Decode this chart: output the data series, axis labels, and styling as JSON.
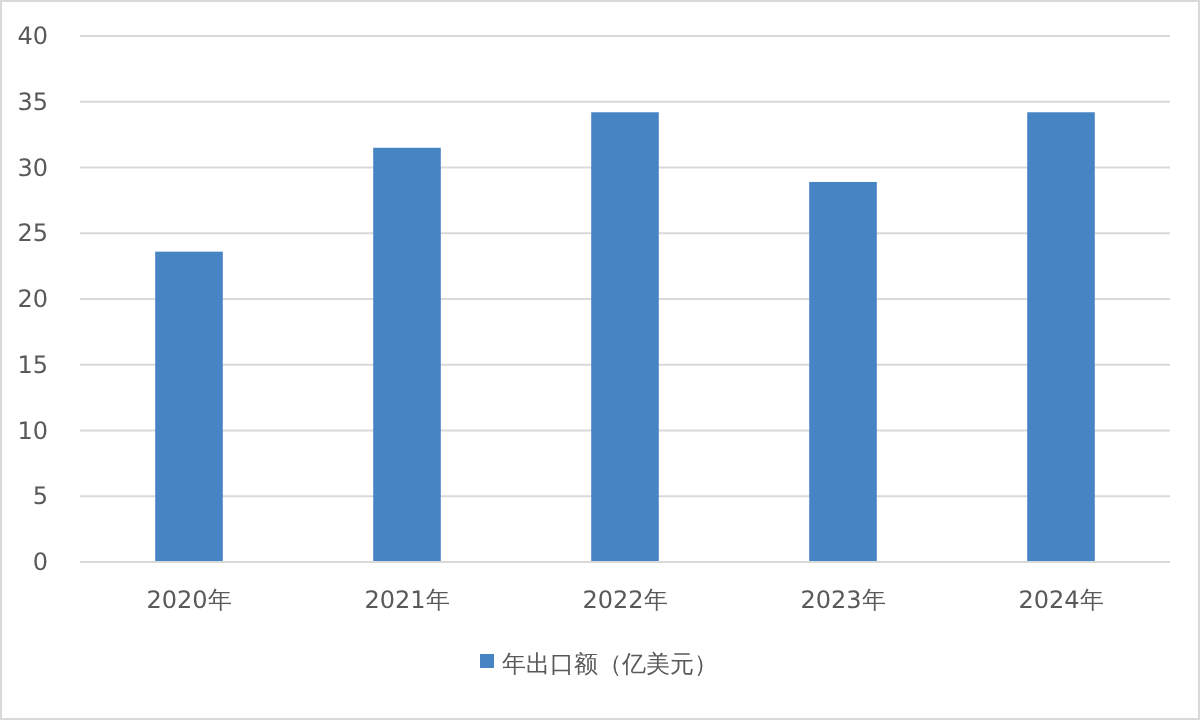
{
  "chart_data": {
    "type": "bar",
    "categories": [
      "2020年",
      "2021年",
      "2022年",
      "2023年",
      "2024年"
    ],
    "series": [
      {
        "name": "年出口额（亿美元）",
        "color": "#4684c4",
        "values": [
          23.6,
          31.5,
          34.2,
          28.9,
          34.2
        ]
      }
    ],
    "ylim": [
      0,
      40
    ],
    "yticks": [
      0,
      5,
      10,
      15,
      20,
      25,
      30,
      35,
      40
    ],
    "grid": "y",
    "legend": "bottom"
  }
}
